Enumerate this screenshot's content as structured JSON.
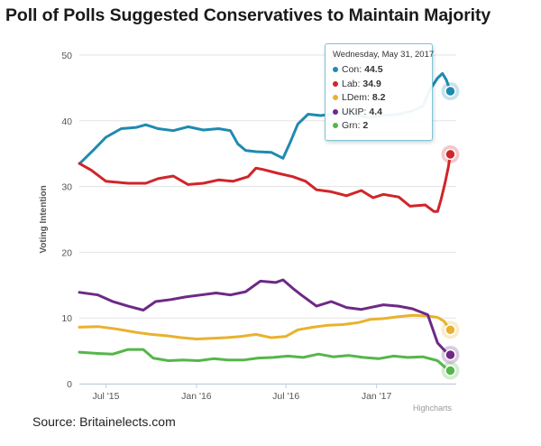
{
  "title": "Poll of Polls Suggested Conservatives to Maintain Majority",
  "source": "Source: Britainelects.com",
  "credits": "Highcharts",
  "colors": {
    "Con": "#1f8ab0",
    "Lab": "#d0252a",
    "LDem": "#e9b22e",
    "UKIP": "#6d2a85",
    "Grn": "#55b64a"
  },
  "tooltip": {
    "date": "Wednesday, May 31, 2017",
    "rows": [
      {
        "name": "Con",
        "value": "44.5"
      },
      {
        "name": "Lab",
        "value": "34.9"
      },
      {
        "name": "LDem",
        "value": "8.2"
      },
      {
        "name": "UKIP",
        "value": "4.4"
      },
      {
        "name": "Grn",
        "value": "2"
      }
    ]
  },
  "chart_data": {
    "type": "line",
    "title": "Poll of Polls Suggested Conservatives to Maintain Majority",
    "xlabel": "",
    "ylabel": "Voting Intention",
    "ylim": [
      0,
      50
    ],
    "yticks": [
      "0",
      "10",
      "20",
      "30",
      "40",
      "50"
    ],
    "xlim": [
      "2015-05-08",
      "2017-06-01"
    ],
    "xticks": [
      {
        "label": "Jul '15",
        "date": "2015-07-01"
      },
      {
        "label": "Jan '16",
        "date": "2016-01-01"
      },
      {
        "label": "Jul '16",
        "date": "2016-07-01"
      },
      {
        "label": "Jan '17",
        "date": "2017-01-01"
      }
    ],
    "series": [
      {
        "name": "Con",
        "points": [
          [
            "2015-05-10",
            33.6
          ],
          [
            "2015-06-05",
            35.5
          ],
          [
            "2015-07-01",
            37.5
          ],
          [
            "2015-08-01",
            38.8
          ],
          [
            "2015-09-01",
            39
          ],
          [
            "2015-09-20",
            39.4
          ],
          [
            "2015-10-15",
            38.8
          ],
          [
            "2015-11-15",
            38.5
          ],
          [
            "2015-12-15",
            39.1
          ],
          [
            "2016-01-15",
            38.6
          ],
          [
            "2016-02-15",
            38.8
          ],
          [
            "2016-03-10",
            38.5
          ],
          [
            "2016-03-25",
            36.5
          ],
          [
            "2016-04-10",
            35.5
          ],
          [
            "2016-05-01",
            35.3
          ],
          [
            "2016-06-01",
            35.2
          ],
          [
            "2016-06-25",
            34.3
          ],
          [
            "2016-07-10",
            36.8
          ],
          [
            "2016-07-25",
            39.5
          ],
          [
            "2016-08-15",
            41
          ],
          [
            "2016-09-10",
            40.8
          ],
          [
            "2016-10-15",
            41.2
          ],
          [
            "2016-11-15",
            41
          ],
          [
            "2016-12-15",
            40.5
          ],
          [
            "2017-01-15",
            40.8
          ],
          [
            "2017-02-15",
            41
          ],
          [
            "2017-03-15",
            41.5
          ],
          [
            "2017-04-05",
            42.2
          ],
          [
            "2017-04-20",
            44.8
          ],
          [
            "2017-05-05",
            46.5
          ],
          [
            "2017-05-15",
            47.2
          ],
          [
            "2017-05-23",
            46.2
          ],
          [
            "2017-05-31",
            44.5
          ]
        ]
      },
      {
        "name": "Lab",
        "points": [
          [
            "2015-05-08",
            33.5
          ],
          [
            "2015-06-01",
            32.5
          ],
          [
            "2015-07-01",
            30.8
          ],
          [
            "2015-08-15",
            30.5
          ],
          [
            "2015-09-20",
            30.5
          ],
          [
            "2015-10-15",
            31.2
          ],
          [
            "2015-11-15",
            31.6
          ],
          [
            "2015-12-15",
            30.3
          ],
          [
            "2016-01-15",
            30.5
          ],
          [
            "2016-02-15",
            31
          ],
          [
            "2016-03-15",
            30.8
          ],
          [
            "2016-04-15",
            31.5
          ],
          [
            "2016-05-01",
            32.8
          ],
          [
            "2016-05-15",
            32.6
          ],
          [
            "2016-06-15",
            32
          ],
          [
            "2016-07-15",
            31.5
          ],
          [
            "2016-08-10",
            30.8
          ],
          [
            "2016-09-01",
            29.5
          ],
          [
            "2016-10-01",
            29.2
          ],
          [
            "2016-11-01",
            28.6
          ],
          [
            "2016-12-01",
            29.4
          ],
          [
            "2016-12-25",
            28.3
          ],
          [
            "2017-01-15",
            28.8
          ],
          [
            "2017-02-15",
            28.4
          ],
          [
            "2017-03-10",
            27
          ],
          [
            "2017-04-10",
            27.2
          ],
          [
            "2017-04-28",
            26.2
          ],
          [
            "2017-05-05",
            26.2
          ],
          [
            "2017-05-12",
            28
          ],
          [
            "2017-05-20",
            30.5
          ],
          [
            "2017-05-27",
            33
          ],
          [
            "2017-05-31",
            34.9
          ]
        ]
      },
      {
        "name": "LDem",
        "points": [
          [
            "2015-05-08",
            8.6
          ],
          [
            "2015-06-15",
            8.7
          ],
          [
            "2015-07-25",
            8.3
          ],
          [
            "2015-09-01",
            7.8
          ],
          [
            "2015-10-01",
            7.5
          ],
          [
            "2015-11-01",
            7.3
          ],
          [
            "2015-12-01",
            7
          ],
          [
            "2016-01-01",
            6.8
          ],
          [
            "2016-02-01",
            6.9
          ],
          [
            "2016-03-01",
            7
          ],
          [
            "2016-04-01",
            7.2
          ],
          [
            "2016-05-01",
            7.5
          ],
          [
            "2016-06-01",
            7
          ],
          [
            "2016-07-01",
            7.2
          ],
          [
            "2016-07-25",
            8.2
          ],
          [
            "2016-08-25",
            8.6
          ],
          [
            "2016-09-25",
            8.9
          ],
          [
            "2016-10-25",
            9
          ],
          [
            "2016-11-25",
            9.3
          ],
          [
            "2016-12-20",
            9.8
          ],
          [
            "2017-01-15",
            9.9
          ],
          [
            "2017-02-15",
            10.2
          ],
          [
            "2017-03-15",
            10.4
          ],
          [
            "2017-04-15",
            10.3
          ],
          [
            "2017-05-05",
            10.1
          ],
          [
            "2017-05-18",
            9.5
          ],
          [
            "2017-05-31",
            8.2
          ]
        ]
      },
      {
        "name": "UKIP",
        "points": [
          [
            "2015-05-08",
            13.9
          ],
          [
            "2015-06-15",
            13.5
          ],
          [
            "2015-07-15",
            12.5
          ],
          [
            "2015-08-15",
            11.8
          ],
          [
            "2015-09-15",
            11.2
          ],
          [
            "2015-10-10",
            12.5
          ],
          [
            "2015-11-10",
            12.8
          ],
          [
            "2015-12-10",
            13.2
          ],
          [
            "2016-01-10",
            13.5
          ],
          [
            "2016-02-10",
            13.8
          ],
          [
            "2016-03-10",
            13.5
          ],
          [
            "2016-04-10",
            14
          ],
          [
            "2016-05-10",
            15.6
          ],
          [
            "2016-06-10",
            15.4
          ],
          [
            "2016-06-25",
            15.8
          ],
          [
            "2016-07-15",
            14.5
          ],
          [
            "2016-08-01",
            13.5
          ],
          [
            "2016-09-01",
            11.8
          ],
          [
            "2016-10-01",
            12.5
          ],
          [
            "2016-11-01",
            11.6
          ],
          [
            "2016-12-01",
            11.3
          ],
          [
            "2017-01-15",
            12
          ],
          [
            "2017-02-15",
            11.8
          ],
          [
            "2017-03-15",
            11.4
          ],
          [
            "2017-04-15",
            10.5
          ],
          [
            "2017-05-05",
            6.2
          ],
          [
            "2017-05-20",
            5
          ],
          [
            "2017-05-31",
            4.4
          ]
        ]
      },
      {
        "name": "Grn",
        "points": [
          [
            "2015-05-08",
            4.8
          ],
          [
            "2015-06-15",
            4.6
          ],
          [
            "2015-07-15",
            4.5
          ],
          [
            "2015-08-15",
            5.2
          ],
          [
            "2015-09-15",
            5.2
          ],
          [
            "2015-10-05",
            3.9
          ],
          [
            "2015-11-05",
            3.5
          ],
          [
            "2015-12-05",
            3.6
          ],
          [
            "2016-01-05",
            3.5
          ],
          [
            "2016-02-05",
            3.8
          ],
          [
            "2016-03-05",
            3.6
          ],
          [
            "2016-04-05",
            3.6
          ],
          [
            "2016-05-05",
            3.9
          ],
          [
            "2016-06-05",
            4
          ],
          [
            "2016-07-05",
            4.2
          ],
          [
            "2016-08-05",
            4
          ],
          [
            "2016-09-05",
            4.5
          ],
          [
            "2016-10-05",
            4.1
          ],
          [
            "2016-11-05",
            4.3
          ],
          [
            "2016-12-05",
            4
          ],
          [
            "2017-01-05",
            3.8
          ],
          [
            "2017-02-05",
            4.2
          ],
          [
            "2017-03-05",
            4
          ],
          [
            "2017-04-05",
            4.1
          ],
          [
            "2017-05-05",
            3.5
          ],
          [
            "2017-05-20",
            2.5
          ],
          [
            "2017-05-31",
            2
          ]
        ]
      }
    ]
  }
}
